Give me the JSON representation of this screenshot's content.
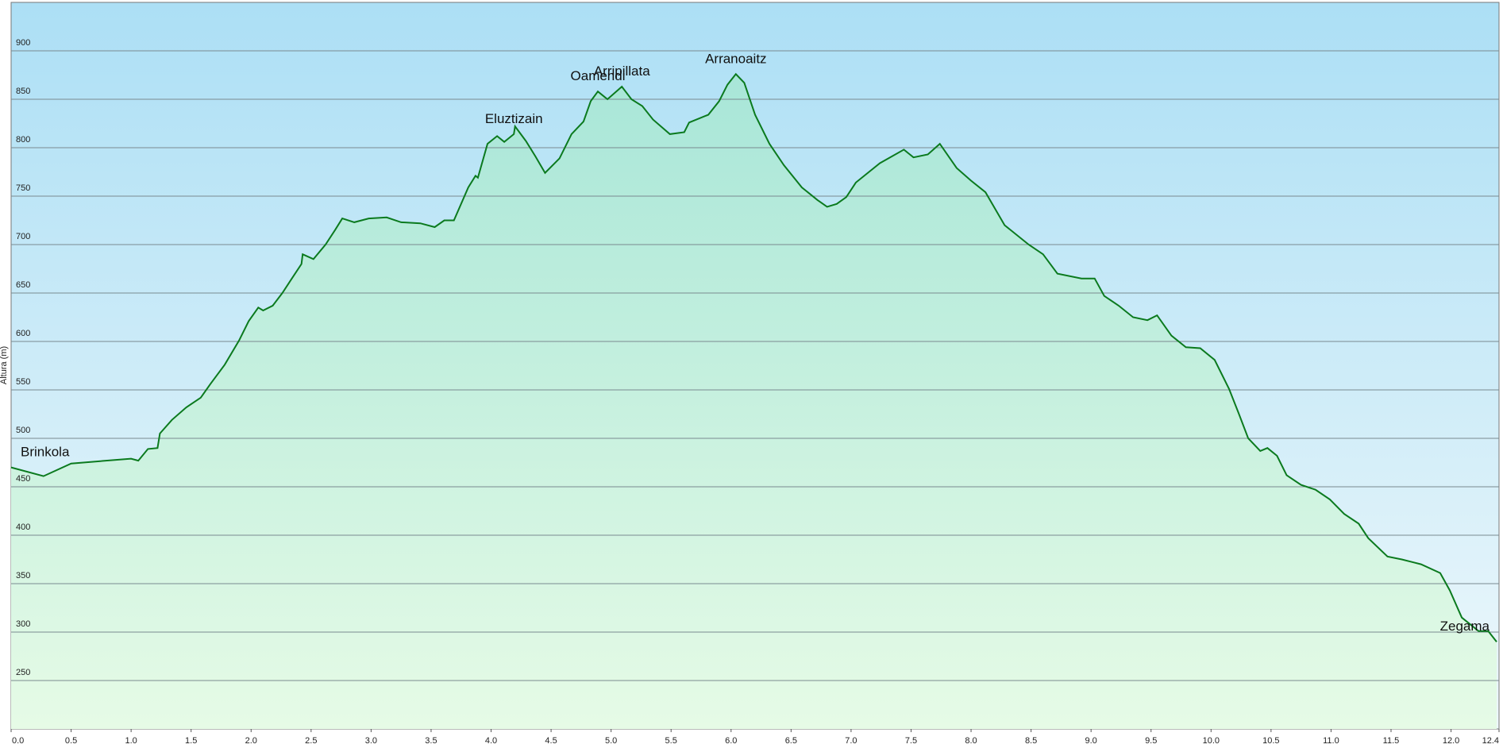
{
  "chart_data": {
    "type": "area",
    "y_label": "Altura (m)",
    "x": [
      0.0,
      0.27,
      0.5,
      1.0,
      1.06,
      1.14,
      1.22,
      1.24,
      1.34,
      1.46,
      1.58,
      1.66,
      1.78,
      1.9,
      1.98,
      2.06,
      2.1,
      2.18,
      2.26,
      2.34,
      2.42,
      2.43,
      2.52,
      2.62,
      2.7,
      2.76,
      2.86,
      2.98,
      3.13,
      3.25,
      3.41,
      3.53,
      3.61,
      3.69,
      3.81,
      3.87,
      3.89,
      3.97,
      4.05,
      4.11,
      4.19,
      4.2,
      4.29,
      4.37,
      4.45,
      4.57,
      4.67,
      4.77,
      4.83,
      4.89,
      4.97,
      5.09,
      5.17,
      5.26,
      5.35,
      5.49,
      5.61,
      5.65,
      5.81,
      5.9,
      5.97,
      6.04,
      6.11,
      6.2,
      6.32,
      6.44,
      6.59,
      6.72,
      6.8,
      6.88,
      6.96,
      7.04,
      7.24,
      7.44,
      7.52,
      7.64,
      7.74,
      7.88,
      8.0,
      8.12,
      8.28,
      8.48,
      8.6,
      8.72,
      8.92,
      9.03,
      9.11,
      9.23,
      9.35,
      9.47,
      9.55,
      9.67,
      9.79,
      9.91,
      10.03,
      10.15,
      10.23,
      10.31,
      10.41,
      10.47,
      10.55,
      10.63,
      10.75,
      10.87,
      10.99,
      11.11,
      11.23,
      11.31,
      11.47,
      11.59,
      11.75,
      11.91,
      11.99,
      12.09,
      12.23,
      12.31,
      12.38
    ],
    "values": [
      470,
      461,
      474,
      479,
      477,
      489,
      490,
      505,
      519,
      532,
      542,
      556,
      576,
      601,
      621,
      635,
      632,
      637,
      650,
      665,
      680,
      690,
      685,
      700,
      715,
      727,
      723,
      727,
      728,
      723,
      722,
      718,
      725,
      725,
      759,
      771,
      769,
      804,
      812,
      806,
      814,
      822,
      807,
      791,
      774,
      789,
      814,
      827,
      848,
      858,
      850,
      863,
      850,
      843,
      829,
      814,
      816,
      826,
      834,
      848,
      865,
      876,
      867,
      834,
      804,
      782,
      759,
      746,
      739,
      742,
      749,
      764,
      784,
      798,
      790,
      793,
      804,
      779,
      766,
      754,
      720,
      700,
      690,
      670,
      665,
      665,
      647,
      637,
      625,
      622,
      627,
      606,
      594,
      593,
      581,
      551,
      526,
      500,
      487,
      490,
      482,
      462,
      452,
      447,
      437,
      422,
      412,
      397,
      378,
      375,
      370,
      361,
      343,
      315,
      301,
      301,
      290
    ],
    "color": "#0b7a1e",
    "annotations": [
      {
        "text": "Brinkola",
        "x": 0.0,
        "y": 470
      },
      {
        "text": "Eluztizain",
        "x": 4.19,
        "y": 814
      },
      {
        "text": "Oamendi",
        "x": 4.89,
        "y": 858
      },
      {
        "text": "Arripillata",
        "x": 5.09,
        "y": 863
      },
      {
        "text": "Arranoaitz",
        "x": 6.04,
        "y": 876
      },
      {
        "text": "Zegama",
        "x": 12.38,
        "y": 290
      }
    ],
    "xlim": [
      0,
      12.4
    ],
    "ylim": [
      200,
      950
    ],
    "xticks": [
      {
        "value": 0,
        "label": "0.0"
      },
      0.5,
      {
        "value": 1,
        "label": "1.0"
      },
      1.5,
      {
        "value": 2,
        "label": "2.0"
      },
      2.5,
      {
        "value": 3,
        "label": "3.0"
      },
      3.5,
      {
        "value": 4,
        "label": "4.0"
      },
      4.5,
      {
        "value": 5,
        "label": "5.0"
      },
      5.5,
      {
        "value": 6,
        "label": "6.0"
      },
      6.5,
      {
        "value": 7,
        "label": "7.0"
      },
      7.5,
      {
        "value": 8,
        "label": "8.0"
      },
      8.5,
      {
        "value": 9,
        "label": "9.0"
      },
      9.5,
      {
        "value": 10,
        "label": "10.0"
      },
      10.5,
      {
        "value": 11,
        "label": "11.0"
      },
      11.5,
      {
        "value": 12,
        "label": "12.0"
      },
      12.4
    ],
    "yticks": [
      250,
      300,
      350,
      400,
      450,
      500,
      550,
      600,
      650,
      700,
      750,
      800,
      850,
      900
    ],
    "grid": true
  }
}
